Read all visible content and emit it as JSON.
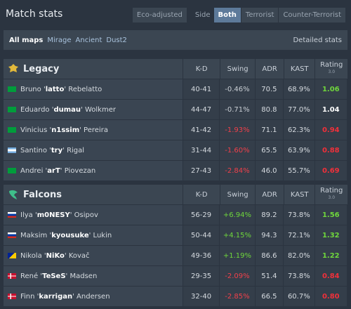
{
  "header": {
    "title": "Match stats",
    "eco": "Eco-adjusted",
    "side": "Side",
    "sides": [
      "Both",
      "Terrorist",
      "Counter-Terrorist"
    ]
  },
  "maps": {
    "items": [
      "All maps",
      "Mirage",
      "Ancient",
      "Dust2"
    ],
    "detailed": "Detailed stats"
  },
  "teams": [
    {
      "name": "Legacy",
      "columns": [
        "K-D",
        "Swing",
        "ADR",
        "KAST"
      ],
      "rating_label": "Rating",
      "rating_version": "3.0",
      "players": [
        {
          "name": [
            "Bruno '",
            "latto",
            "' Rebelatto"
          ],
          "kd": "40-41",
          "swing": "-0.46%",
          "adr": "70.5",
          "kast": "68.9%",
          "rating": "1.06",
          "swing_color": "#c9ced4",
          "rating_color": "#6fd63c"
        },
        {
          "name": [
            "Eduardo '",
            "dumau",
            "' Wolkmer"
          ],
          "kd": "44-47",
          "swing": "-0.71%",
          "adr": "80.8",
          "kast": "77.0%",
          "rating": "1.04",
          "swing_color": "#c9ced4",
          "rating_color": "#ffffff"
        },
        {
          "name": [
            "Vinicius '",
            "n1ssim",
            "' Pereira"
          ],
          "kd": "41-42",
          "swing": "-1.93%",
          "adr": "71.1",
          "kast": "62.3%",
          "rating": "0.94",
          "swing_color": "#f0404a",
          "rating_color": "#f0303a"
        },
        {
          "name": [
            "Santino '",
            "try",
            "' Rigal"
          ],
          "kd": "31-44",
          "swing": "-1.60%",
          "adr": "65.5",
          "kast": "63.9%",
          "rating": "0.88",
          "swing_color": "#f0404a",
          "rating_color": "#f0303a"
        },
        {
          "name": [
            "Andrei '",
            "arT",
            "' Piovezan"
          ],
          "kd": "27-43",
          "swing": "-2.84%",
          "adr": "46.0",
          "kast": "55.7%",
          "rating": "0.69",
          "swing_color": "#f0404a",
          "rating_color": "#f0303a"
        }
      ]
    },
    {
      "name": "Falcons",
      "columns": [
        "K-D",
        "Swing",
        "ADR",
        "KAST"
      ],
      "rating_label": "Rating",
      "rating_version": "3.0",
      "players": [
        {
          "name": [
            "Ilya '",
            "m0NESY",
            "' Osipov"
          ],
          "kd": "56-29",
          "swing": "+6.94%",
          "adr": "89.2",
          "kast": "73.8%",
          "rating": "1.56",
          "swing_color": "#6fd63c",
          "rating_color": "#6fd63c"
        },
        {
          "name": [
            "Maksim '",
            "kyousuke",
            "' Lukin"
          ],
          "kd": "50-44",
          "swing": "+4.15%",
          "adr": "94.3",
          "kast": "72.1%",
          "rating": "1.32",
          "swing_color": "#6fd63c",
          "rating_color": "#6fd63c"
        },
        {
          "name": [
            "Nikola '",
            "NiKo",
            "' Kovač"
          ],
          "kd": "49-36",
          "swing": "+1.19%",
          "adr": "86.6",
          "kast": "82.0%",
          "rating": "1.22",
          "swing_color": "#6fd63c",
          "rating_color": "#6fd63c"
        },
        {
          "name": [
            "René '",
            "TeSeS",
            "' Madsen"
          ],
          "kd": "29-35",
          "swing": "-2.09%",
          "adr": "51.4",
          "kast": "73.8%",
          "rating": "0.84",
          "swing_color": "#f0404a",
          "rating_color": "#f0303a"
        },
        {
          "name": [
            "Finn '",
            "karrigan",
            "' Andersen"
          ],
          "kd": "32-40",
          "swing": "-2.85%",
          "adr": "66.5",
          "kast": "60.7%",
          "rating": "0.80",
          "swing_color": "#f0404a",
          "rating_color": "#f0303a"
        }
      ]
    }
  ]
}
